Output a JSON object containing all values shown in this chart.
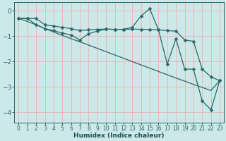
{
  "xlabel": "Humidex (Indice chaleur)",
  "ylabel": "",
  "xlim": [
    -0.5,
    23.5
  ],
  "ylim": [
    -4.4,
    0.35
  ],
  "yticks": [
    0,
    -1,
    -2,
    -3,
    -4
  ],
  "xticks": [
    0,
    1,
    2,
    3,
    4,
    5,
    6,
    7,
    8,
    9,
    10,
    11,
    12,
    13,
    14,
    15,
    16,
    17,
    18,
    19,
    20,
    21,
    22,
    23
  ],
  "bg_color": "#cce8e8",
  "grid_color": "#e8b8b8",
  "line_color": "#2a6868",
  "series1_x": [
    0,
    1,
    2,
    3,
    4,
    5,
    6,
    7,
    8,
    9,
    10,
    11,
    12,
    13,
    14,
    15,
    16,
    17,
    18,
    19,
    20,
    21,
    22,
    23
  ],
  "series1_y": [
    -0.3,
    -0.3,
    -0.3,
    -0.55,
    -0.6,
    -0.65,
    -0.7,
    -0.78,
    -0.75,
    -0.73,
    -0.72,
    -0.73,
    -0.73,
    -0.72,
    -0.73,
    -0.73,
    -0.75,
    -0.78,
    -0.8,
    -1.15,
    -1.2,
    -2.3,
    -2.6,
    -2.75
  ],
  "series2_x": [
    0,
    1,
    2,
    3,
    4,
    5,
    6,
    7,
    8,
    9,
    10,
    11,
    12,
    13,
    14,
    15,
    16,
    17,
    18,
    19,
    20,
    21,
    22,
    23
  ],
  "series2_y": [
    -0.3,
    -0.3,
    -0.55,
    -0.7,
    -0.78,
    -0.88,
    -0.95,
    -1.15,
    -0.9,
    -0.8,
    -0.72,
    -0.73,
    -0.73,
    -0.65,
    -0.2,
    0.08,
    -0.75,
    -2.1,
    -1.1,
    -2.3,
    -2.3,
    -3.55,
    -3.9,
    -2.75
  ],
  "series3_x": [
    0,
    1,
    2,
    3,
    4,
    5,
    6,
    7,
    8,
    9,
    10,
    11,
    12,
    13,
    14,
    15,
    16,
    17,
    18,
    19,
    20,
    21,
    22,
    23
  ],
  "series3_y": [
    -0.3,
    -0.42,
    -0.55,
    -0.7,
    -0.83,
    -0.97,
    -1.1,
    -1.22,
    -1.35,
    -1.48,
    -1.61,
    -1.74,
    -1.87,
    -2.0,
    -2.13,
    -2.26,
    -2.39,
    -2.52,
    -2.65,
    -2.77,
    -2.9,
    -3.02,
    -3.14,
    -2.75
  ]
}
